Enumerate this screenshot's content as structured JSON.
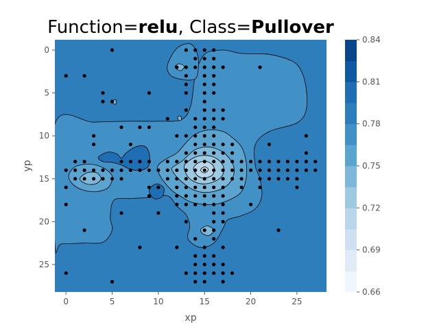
{
  "chart_data": {
    "type": "contourf",
    "title_parts": [
      {
        "text": "Function=",
        "bold": false
      },
      {
        "text": "relu",
        "bold": true
      },
      {
        "text": ", Class=",
        "bold": false
      },
      {
        "text": "Pullover",
        "bold": true
      }
    ],
    "xlabel": "xp",
    "ylabel": "yp",
    "xlim": [
      -1.2,
      28.2
    ],
    "ylim": [
      28.2,
      -1.2
    ],
    "y_inverted": true,
    "xticks": [
      0,
      5,
      10,
      15,
      20,
      25
    ],
    "yticks": [
      0,
      5,
      10,
      15,
      20,
      25
    ],
    "colorbar": {
      "levels": [
        0.66,
        0.675,
        0.69,
        0.705,
        0.72,
        0.735,
        0.75,
        0.765,
        0.78,
        0.795,
        0.81,
        0.825,
        0.84
      ],
      "tick_values": [
        0.66,
        0.69,
        0.72,
        0.75,
        0.78,
        0.81,
        0.84
      ],
      "tick_labels": [
        "0.66",
        "0.69",
        "0.72",
        "0.75",
        "0.78",
        "0.81",
        "0.84"
      ],
      "colors": [
        "#f0f6fd",
        "#dfebf7",
        "#cee0f2",
        "#b9d6ea",
        "#9ecae1",
        "#7db8da",
        "#5ca4d0",
        "#4191c6",
        "#2e7ebc",
        "#1f6eb3",
        "#0f59a3",
        "#08468c"
      ]
    },
    "background_value": 0.79,
    "regions": [
      {
        "value": 0.773,
        "points": [
          [
            -1.2,
            8.6
          ],
          [
            3,
            8.4
          ],
          [
            7,
            8.3
          ],
          [
            10,
            8.3
          ],
          [
            12.5,
            8.1
          ],
          [
            13.5,
            6.5
          ],
          [
            14,
            3
          ],
          [
            15,
            0.5
          ],
          [
            17,
            0
          ],
          [
            19,
            0.4
          ],
          [
            22,
            0.5
          ],
          [
            24.5,
            1.3
          ],
          [
            25.5,
            2.5
          ],
          [
            26,
            4.5
          ],
          [
            26,
            7
          ],
          [
            25,
            8.5
          ],
          [
            22,
            9.5
          ],
          [
            20.5,
            11
          ],
          [
            20.5,
            13.5
          ],
          [
            21,
            15
          ],
          [
            21.2,
            17
          ],
          [
            20.5,
            18.5
          ],
          [
            19,
            19.3
          ],
          [
            17.5,
            19.8
          ],
          [
            17,
            20.8
          ],
          [
            16,
            22.5
          ],
          [
            14.5,
            23
          ],
          [
            13.2,
            22
          ],
          [
            13.4,
            20.5
          ],
          [
            13,
            19.2
          ],
          [
            12,
            18.2
          ],
          [
            11,
            17
          ],
          [
            9,
            17.2
          ],
          [
            7,
            17.3
          ],
          [
            5.2,
            17.5
          ],
          [
            4.8,
            19.5
          ],
          [
            5,
            21
          ],
          [
            4,
            22.4
          ],
          [
            2,
            22.5
          ],
          [
            -0.5,
            22.6
          ],
          [
            -1.2,
            22.6
          ]
        ]
      },
      {
        "value": 0.773,
        "points": [
          [
            11,
            1.7
          ],
          [
            12,
            -0.2
          ],
          [
            13.5,
            -0.7
          ],
          [
            14.3,
            0.8
          ],
          [
            14.2,
            3
          ],
          [
            13.5,
            3.5
          ],
          [
            12,
            3.3
          ],
          [
            11.2,
            2.8
          ]
        ]
      },
      {
        "value": 0.757,
        "points": [
          [
            10,
            13.4
          ],
          [
            11,
            12.6
          ],
          [
            12,
            12
          ],
          [
            13,
            10.8
          ],
          [
            14,
            9.8
          ],
          [
            15.5,
            9.3
          ],
          [
            17,
            9.5
          ],
          [
            18,
            10.2
          ],
          [
            19,
            11.3
          ],
          [
            19.5,
            13
          ],
          [
            19.5,
            15
          ],
          [
            19,
            16.5
          ],
          [
            18,
            17.3
          ],
          [
            16.5,
            17.9
          ],
          [
            15,
            18
          ],
          [
            13.5,
            17.7
          ],
          [
            12.5,
            17.1
          ],
          [
            11.5,
            16.4
          ],
          [
            10.5,
            15.2
          ],
          [
            10,
            14.2
          ]
        ]
      },
      {
        "value": 0.742,
        "points": [
          [
            11.5,
            13.7
          ],
          [
            12.5,
            13
          ],
          [
            13.3,
            12.2
          ],
          [
            14,
            11.6
          ],
          [
            15,
            11.3
          ],
          [
            16,
            11.4
          ],
          [
            17,
            11.9
          ],
          [
            17.8,
            12.8
          ],
          [
            18.2,
            13.8
          ],
          [
            18,
            15
          ],
          [
            17.3,
            15.9
          ],
          [
            16.3,
            16.4
          ],
          [
            15,
            16.6
          ],
          [
            13.8,
            16.3
          ],
          [
            12.8,
            15.6
          ],
          [
            12,
            14.8
          ],
          [
            11.6,
            14.2
          ]
        ]
      },
      {
        "value": 0.727,
        "points": [
          [
            12.8,
            13.5
          ],
          [
            13.6,
            12.7
          ],
          [
            14.6,
            12.3
          ],
          [
            15.8,
            12.4
          ],
          [
            16.7,
            13
          ],
          [
            17.1,
            13.9
          ],
          [
            16.8,
            14.8
          ],
          [
            15.9,
            15.4
          ],
          [
            14.8,
            15.6
          ],
          [
            13.8,
            15.3
          ],
          [
            13.1,
            14.6
          ]
        ]
      },
      {
        "value": 0.712,
        "points": [
          [
            13.8,
            13.8
          ],
          [
            14.4,
            13.1
          ],
          [
            15.3,
            13
          ],
          [
            16,
            13.6
          ],
          [
            15.9,
            14.5
          ],
          [
            15.1,
            14.9
          ],
          [
            14.3,
            14.7
          ]
        ]
      },
      {
        "value": 0.696,
        "points": [
          [
            14.6,
            13.9
          ],
          [
            15,
            13.6
          ],
          [
            15.4,
            13.9
          ],
          [
            15.1,
            14.3
          ],
          [
            14.7,
            14.2
          ]
        ]
      },
      {
        "value": 0.757,
        "points": [
          [
            0.3,
            14.6
          ],
          [
            1,
            13.6
          ],
          [
            2.5,
            13.3
          ],
          [
            4,
            13.7
          ],
          [
            5,
            14.7
          ],
          [
            4.6,
            16
          ],
          [
            3.3,
            16.5
          ],
          [
            1.8,
            16.3
          ],
          [
            0.7,
            15.6
          ]
        ]
      },
      {
        "value": 0.742,
        "points": [
          [
            1.5,
            15
          ],
          [
            2.3,
            14.3
          ],
          [
            3.3,
            14.3
          ],
          [
            3.8,
            15
          ],
          [
            3.2,
            15.6
          ],
          [
            2.2,
            15.6
          ]
        ]
      },
      {
        "value": 0.802,
        "points": [
          [
            3.5,
            12.5
          ],
          [
            4.5,
            11.9
          ],
          [
            5.5,
            12.1
          ],
          [
            6,
            12.6
          ],
          [
            6.5,
            12
          ],
          [
            7.5,
            11.3
          ],
          [
            8.5,
            11.2
          ],
          [
            9,
            12
          ],
          [
            9,
            13.4
          ],
          [
            8.2,
            14
          ],
          [
            7,
            13.9
          ],
          [
            6,
            13.4
          ],
          [
            5,
            13.1
          ],
          [
            4,
            13
          ]
        ]
      },
      {
        "value": 0.802,
        "points": [
          [
            9,
            16.3
          ],
          [
            9.8,
            15.6
          ],
          [
            10.6,
            16.1
          ],
          [
            10.4,
            17.1
          ],
          [
            9.5,
            17.3
          ]
        ]
      },
      {
        "value": 0.742,
        "points": [
          [
            14.6,
            20.9
          ],
          [
            15.3,
            20.5
          ],
          [
            16,
            21
          ],
          [
            15.5,
            21.6
          ],
          [
            14.8,
            21.4
          ]
        ]
      },
      {
        "value": 0.742,
        "points": [
          [
            11.8,
            2
          ],
          [
            12.2,
            1.6
          ],
          [
            12.8,
            1.9
          ],
          [
            12.4,
            2.4
          ]
        ]
      },
      {
        "value": 0.742,
        "points": [
          [
            5.1,
            5.9
          ],
          [
            5.4,
            5.8
          ],
          [
            5.4,
            6.3
          ],
          [
            5.1,
            6.2
          ]
        ]
      },
      {
        "value": 0.742,
        "points": [
          [
            12.1,
            7.8
          ],
          [
            12.4,
            7.7
          ],
          [
            12.5,
            8.1
          ],
          [
            12.2,
            8.2
          ]
        ]
      }
    ],
    "points": [
      [
        5,
        0
      ],
      [
        13,
        0
      ],
      [
        14,
        0
      ],
      [
        15,
        0
      ],
      [
        16,
        0
      ],
      [
        0,
        3
      ],
      [
        2,
        3
      ],
      [
        12,
        2
      ],
      [
        13,
        2
      ],
      [
        14,
        1
      ],
      [
        14,
        2
      ],
      [
        15,
        1
      ],
      [
        15,
        2
      ],
      [
        16,
        2
      ],
      [
        16,
        1
      ],
      [
        17,
        2
      ],
      [
        13,
        3
      ],
      [
        13,
        4
      ],
      [
        15,
        3
      ],
      [
        15,
        4
      ],
      [
        16,
        3
      ],
      [
        16,
        4
      ],
      [
        16,
        5
      ],
      [
        4,
        5
      ],
      [
        4,
        6
      ],
      [
        5,
        6
      ],
      [
        9,
        5
      ],
      [
        13,
        5
      ],
      [
        15,
        5
      ],
      [
        13,
        7
      ],
      [
        15,
        6
      ],
      [
        15,
        7
      ],
      [
        16,
        7
      ],
      [
        17,
        7
      ],
      [
        17,
        8
      ],
      [
        6,
        9
      ],
      [
        8,
        9
      ],
      [
        9,
        9
      ],
      [
        14,
        8
      ],
      [
        14,
        9
      ],
      [
        15,
        8
      ],
      [
        15,
        9
      ],
      [
        16,
        8
      ],
      [
        16,
        9
      ],
      [
        3,
        10
      ],
      [
        3,
        11
      ],
      [
        11,
        8
      ],
      [
        12,
        10
      ],
      [
        13,
        10
      ],
      [
        14,
        10
      ],
      [
        15,
        10
      ],
      [
        16,
        10
      ],
      [
        17,
        11
      ],
      [
        18,
        11
      ],
      [
        21,
        2
      ],
      [
        22,
        11
      ],
      [
        26,
        10
      ],
      [
        26,
        12
      ],
      [
        0,
        14
      ],
      [
        1,
        13
      ],
      [
        1,
        14
      ],
      [
        1,
        15
      ],
      [
        2,
        13
      ],
      [
        2,
        14
      ],
      [
        2,
        15
      ],
      [
        3,
        14
      ],
      [
        3,
        15
      ],
      [
        4,
        14
      ],
      [
        4,
        15
      ],
      [
        5,
        14
      ],
      [
        5,
        15
      ],
      [
        6,
        13
      ],
      [
        6,
        14
      ],
      [
        6,
        15
      ],
      [
        7,
        11
      ],
      [
        7,
        13
      ],
      [
        7,
        14
      ],
      [
        8,
        13
      ],
      [
        8,
        14
      ],
      [
        9,
        13
      ],
      [
        9,
        14
      ],
      [
        10,
        14
      ],
      [
        11,
        13
      ],
      [
        11,
        14
      ],
      [
        11,
        15
      ],
      [
        12,
        13
      ],
      [
        12,
        14
      ],
      [
        12,
        15
      ],
      [
        12,
        16
      ],
      [
        13,
        12
      ],
      [
        13,
        13
      ],
      [
        13,
        14
      ],
      [
        13,
        15
      ],
      [
        13,
        16
      ],
      [
        14,
        11
      ],
      [
        14,
        12
      ],
      [
        14,
        13
      ],
      [
        14,
        14
      ],
      [
        14,
        15
      ],
      [
        14,
        16
      ],
      [
        15,
        11
      ],
      [
        15,
        12
      ],
      [
        15,
        13
      ],
      [
        15,
        14
      ],
      [
        15,
        15
      ],
      [
        15,
        16
      ],
      [
        16,
        11
      ],
      [
        16,
        12
      ],
      [
        16,
        13
      ],
      [
        16,
        14
      ],
      [
        16,
        15
      ],
      [
        16,
        16
      ],
      [
        17,
        12
      ],
      [
        17,
        13
      ],
      [
        17,
        14
      ],
      [
        17,
        15
      ],
      [
        17,
        16
      ],
      [
        18,
        12
      ],
      [
        18,
        13
      ],
      [
        18,
        14
      ],
      [
        18,
        15
      ],
      [
        19,
        13
      ],
      [
        19,
        14
      ],
      [
        19,
        15
      ],
      [
        20,
        13
      ],
      [
        20,
        14
      ],
      [
        21,
        13
      ],
      [
        21,
        14
      ],
      [
        21,
        15
      ],
      [
        22,
        13
      ],
      [
        22,
        14
      ],
      [
        22,
        15
      ],
      [
        23,
        13
      ],
      [
        23,
        14
      ],
      [
        23,
        15
      ],
      [
        24,
        13
      ],
      [
        24,
        14
      ],
      [
        24,
        15
      ],
      [
        25,
        13
      ],
      [
        25,
        14
      ],
      [
        25,
        15
      ],
      [
        26,
        13
      ],
      [
        26,
        14
      ],
      [
        27,
        13
      ],
      [
        27,
        14
      ],
      [
        0,
        16
      ],
      [
        0,
        18
      ],
      [
        6,
        19
      ],
      [
        9,
        16
      ],
      [
        9,
        17
      ],
      [
        10,
        16
      ],
      [
        10,
        19
      ],
      [
        12,
        17
      ],
      [
        12,
        18
      ],
      [
        13,
        17
      ],
      [
        13,
        18
      ],
      [
        14,
        17
      ],
      [
        14,
        18
      ],
      [
        15,
        17
      ],
      [
        15,
        18
      ],
      [
        16,
        17
      ],
      [
        16,
        18
      ],
      [
        17,
        17
      ],
      [
        17,
        18
      ],
      [
        19,
        16
      ],
      [
        21,
        16
      ],
      [
        25,
        16
      ],
      [
        20,
        18
      ],
      [
        17,
        19
      ],
      [
        16,
        19
      ],
      [
        16,
        20
      ],
      [
        17,
        20
      ],
      [
        13,
        20
      ],
      [
        16,
        21
      ],
      [
        15,
        21
      ],
      [
        14,
        22
      ],
      [
        16,
        22
      ],
      [
        2,
        21
      ],
      [
        8,
        23
      ],
      [
        12,
        23
      ],
      [
        15,
        23
      ],
      [
        17,
        23
      ],
      [
        14,
        24
      ],
      [
        15,
        24
      ],
      [
        16,
        24
      ],
      [
        14,
        25
      ],
      [
        15,
        25
      ],
      [
        16,
        25
      ],
      [
        17,
        25
      ],
      [
        13,
        26
      ],
      [
        14,
        26
      ],
      [
        15,
        26
      ],
      [
        16,
        26
      ],
      [
        17,
        26
      ],
      [
        18,
        26
      ],
      [
        0,
        26
      ],
      [
        5,
        27
      ],
      [
        14,
        27
      ],
      [
        15,
        27
      ],
      [
        17,
        27
      ],
      [
        23,
        21
      ]
    ]
  }
}
